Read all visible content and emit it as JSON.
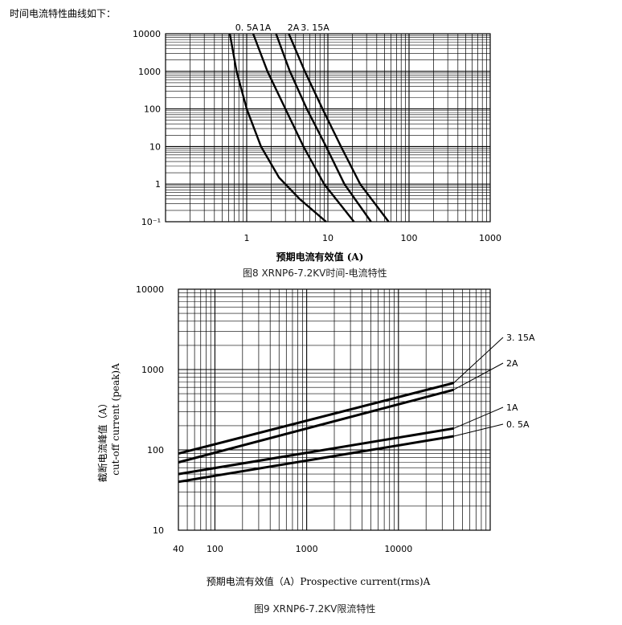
{
  "intro_text": "时间电流特性曲线如下：",
  "chart_data": [
    {
      "type": "line",
      "caption": "图8 XRNP6-7.2KV时间-电流特性",
      "xlabel": "预期电流有效值  (A)",
      "ylabel": "",
      "x_scale": "log",
      "y_scale": "log",
      "xlim": [
        0.1,
        1000
      ],
      "ylim": [
        0.1,
        10000
      ],
      "x_tick_labels": [
        "1",
        "10",
        "100",
        "1000"
      ],
      "x_tick_values": [
        1,
        10,
        100,
        1000
      ],
      "y_tick_labels": [
        "10⁻¹",
        "1",
        "10",
        "100",
        "1000",
        "10000"
      ],
      "y_tick_values": [
        0.1,
        1,
        10,
        100,
        1000,
        10000
      ],
      "grid": true,
      "series": [
        {
          "name": "0.5A",
          "x": [
            0.62,
            0.75,
            1.0,
            1.5,
            2.5,
            4.5,
            9.5
          ],
          "y": [
            10000,
            1000,
            100,
            10,
            1.5,
            0.4,
            0.1
          ]
        },
        {
          "name": "1A",
          "x": [
            1.2,
            1.8,
            3.0,
            5.0,
            9.0,
            21
          ],
          "y": [
            10000,
            1000,
            100,
            10,
            1,
            0.1
          ]
        },
        {
          "name": "2A",
          "x": [
            2.3,
            3.4,
            5.5,
            9.5,
            16,
            34
          ],
          "y": [
            10000,
            1000,
            100,
            10,
            1,
            0.1
          ]
        },
        {
          "name": "3.15A",
          "x": [
            3.3,
            5.2,
            8.6,
            14.5,
            25,
            56
          ],
          "y": [
            10000,
            1000,
            100,
            10,
            1,
            0.1
          ]
        }
      ],
      "curve_labels": [
        "0. 5A",
        "1A",
        "2A",
        "3. 15A"
      ]
    },
    {
      "type": "line",
      "caption": "图9 XRNP6-7.2KV限流特性",
      "xlabel": "预期电流有效值（A）Prospective current(rms)A",
      "ylabel_cn": "截断电流峰值（A）",
      "ylabel_en": "cut-off current (peak)A",
      "x_scale": "log",
      "y_scale": "log",
      "xlim": [
        40,
        100000
      ],
      "ylim": [
        10,
        10000
      ],
      "x_tick_labels": [
        "40",
        "100",
        "1000",
        "10000"
      ],
      "x_tick_values": [
        40,
        100,
        1000,
        10000
      ],
      "y_tick_labels": [
        "10",
        "100",
        "1000",
        "10000"
      ],
      "y_tick_values": [
        10,
        100,
        1000,
        10000
      ],
      "grid": true,
      "series": [
        {
          "name": "3. 15A",
          "x": [
            40,
            40000
          ],
          "y": [
            90,
            680
          ]
        },
        {
          "name": "2A",
          "x": [
            40,
            40000
          ],
          "y": [
            70,
            560
          ]
        },
        {
          "name": "1A",
          "x": [
            40,
            40000
          ],
          "y": [
            50,
            185
          ]
        },
        {
          "name": "0. 5A",
          "x": [
            40,
            40000
          ],
          "y": [
            40,
            148
          ]
        }
      ],
      "curve_labels": [
        "3. 15A",
        "2A",
        "1A",
        "0. 5A"
      ]
    }
  ]
}
